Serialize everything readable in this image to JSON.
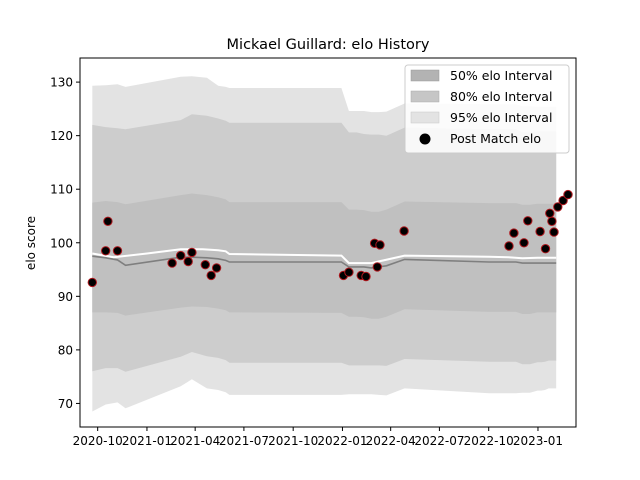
{
  "chart_data": {
    "type": "area",
    "title": "Mickael Guillard: elo History",
    "xlabel": "",
    "ylabel": "elo score",
    "ylim": [
      65.6,
      134.5
    ],
    "xlim": [
      "2020-08-29",
      "2023-03-13"
    ],
    "yticks": [
      70,
      80,
      90,
      100,
      110,
      120,
      130
    ],
    "xticks": [
      "2020-10-01",
      "2021-01-01",
      "2021-04-01",
      "2021-07-01",
      "2021-10-01",
      "2022-01-01",
      "2022-04-01",
      "2022-07-01",
      "2022-10-01",
      "2023-01-01"
    ],
    "xtick_labels": [
      "2020-10",
      "2021-01",
      "2021-04",
      "2021-07",
      "2021-10",
      "2022-01",
      "2022-04",
      "2022-07",
      "2022-10",
      "2023-01"
    ],
    "legend": {
      "placement": "top-right",
      "entries": [
        "50% elo Interval",
        "80% elo Interval",
        "95% elo Interval",
        "Post Match elo"
      ]
    },
    "bands": {
      "dates": [
        "2020-09-21",
        "2020-10-16",
        "2020-11-07",
        "2020-11-22",
        "2021-03-05",
        "2021-03-26",
        "2021-04-23",
        "2021-05-14",
        "2021-05-28",
        "2021-06-04",
        "2021-12-30",
        "2022-01-13",
        "2022-01-27",
        "2022-02-10",
        "2022-02-24",
        "2022-03-10",
        "2022-03-24",
        "2022-04-27",
        "2022-10-02",
        "2022-10-17",
        "2022-10-30",
        "2022-11-21",
        "2022-12-03",
        "2022-12-17",
        "2022-12-31",
        "2023-01-07",
        "2023-01-14",
        "2023-01-21",
        "2023-02-04"
      ],
      "mean": [
        97.5,
        97.2,
        96.8,
        95.8,
        97.3,
        97.3,
        97.2,
        97.0,
        96.7,
        96.4,
        96.4,
        95.5,
        95.5,
        95.5,
        95.3,
        95.5,
        95.7,
        96.9,
        96.4,
        96.4,
        96.4,
        96.4,
        96.2,
        96.2,
        96.2,
        96.2,
        96.2,
        96.2,
        96.2
      ],
      "q50_low": [
        87.0,
        87.0,
        86.9,
        86.4,
        87.9,
        88.1,
        88.0,
        87.7,
        87.4,
        87.0,
        86.9,
        86.2,
        86.2,
        86.1,
        85.8,
        85.8,
        86.2,
        87.6,
        87.1,
        87.1,
        87.1,
        87.1,
        86.7,
        86.7,
        87.0,
        87.0,
        87.0,
        87.0,
        87.0
      ],
      "q50_high": [
        107.5,
        107.8,
        107.6,
        107.2,
        108.9,
        109.2,
        108.9,
        108.5,
        108.1,
        107.6,
        107.6,
        106.2,
        106.2,
        106.1,
        105.8,
        105.8,
        106.2,
        107.7,
        107.4,
        107.4,
        107.4,
        107.4,
        107.1,
        107.1,
        107.3,
        107.3,
        107.3,
        107.3,
        107.3
      ],
      "q80_low": [
        76.0,
        76.6,
        76.6,
        75.9,
        78.7,
        79.6,
        78.8,
        78.5,
        78.1,
        77.6,
        77.6,
        77.1,
        77.1,
        77.1,
        77.1,
        77.1,
        77.0,
        78.3,
        77.8,
        77.8,
        77.8,
        77.8,
        77.3,
        77.3,
        77.7,
        77.7,
        77.8,
        78.0,
        78.0
      ],
      "q80_high": [
        122.0,
        121.6,
        121.4,
        121.2,
        122.9,
        124.0,
        123.7,
        123.2,
        122.8,
        122.4,
        122.4,
        120.6,
        120.6,
        120.3,
        120.2,
        120.2,
        120.0,
        121.5,
        121.2,
        121.2,
        121.2,
        121.2,
        120.6,
        120.6,
        120.8,
        120.8,
        120.8,
        120.8,
        120.8
      ],
      "q95_low": [
        68.5,
        69.8,
        70.2,
        69.1,
        73.2,
        74.5,
        72.8,
        72.5,
        72.1,
        71.6,
        71.6,
        71.7,
        71.7,
        71.7,
        71.7,
        71.6,
        71.5,
        72.8,
        71.9,
        71.9,
        71.9,
        71.9,
        72.0,
        72.0,
        72.4,
        72.4,
        72.5,
        72.8,
        72.8
      ],
      "q95_high": [
        129.3,
        129.4,
        129.6,
        129.1,
        131.0,
        131.1,
        130.8,
        129.3,
        129.1,
        128.9,
        128.9,
        124.6,
        124.6,
        124.6,
        124.4,
        124.4,
        124.5,
        126.0,
        125.9,
        125.9,
        125.9,
        125.9,
        125.5,
        125.5,
        125.4,
        125.4,
        125.4,
        125.4,
        125.4
      ]
    },
    "post_match_line": {
      "dates": [
        "2020-09-21",
        "2020-10-31",
        "2021-01-01",
        "2021-03-05",
        "2021-04-15",
        "2021-05-14",
        "2021-05-28",
        "2021-06-04",
        "2021-12-30",
        "2022-01-13",
        "2022-02-24",
        "2022-04-27",
        "2022-10-02",
        "2022-11-07",
        "2022-12-03",
        "2022-12-31",
        "2023-02-04"
      ],
      "values": [
        98.0,
        97.3,
        98.0,
        98.8,
        98.8,
        98.6,
        98.4,
        97.9,
        97.6,
        96.2,
        96.2,
        97.6,
        97.4,
        97.3,
        97.1,
        97.2,
        97.2
      ]
    },
    "post_match_points": {
      "dates": [
        "2020-09-21",
        "2020-10-16",
        "2020-10-20",
        "2020-11-07",
        "2021-02-17",
        "2021-03-05",
        "2021-03-19",
        "2021-03-26",
        "2021-04-20",
        "2021-05-01",
        "2021-05-11",
        "2022-01-03",
        "2022-01-13",
        "2022-02-05",
        "2022-02-14",
        "2022-03-02",
        "2022-03-07",
        "2022-03-12",
        "2022-04-26",
        "2022-11-08",
        "2022-11-17",
        "2022-12-06",
        "2022-12-13",
        "2023-01-05",
        "2023-01-15",
        "2023-01-23",
        "2023-01-27",
        "2023-01-31",
        "2023-02-07",
        "2023-02-17",
        "2023-02-26"
      ],
      "values": [
        92.6,
        98.5,
        104.0,
        98.5,
        96.2,
        97.6,
        96.5,
        98.2,
        95.9,
        93.9,
        95.3,
        93.9,
        94.5,
        93.9,
        93.7,
        99.9,
        95.5,
        99.6,
        102.2,
        99.4,
        101.8,
        100.0,
        104.1,
        102.1,
        98.9,
        105.5,
        104.0,
        102.0,
        106.7,
        107.9,
        109.0
      ]
    }
  }
}
